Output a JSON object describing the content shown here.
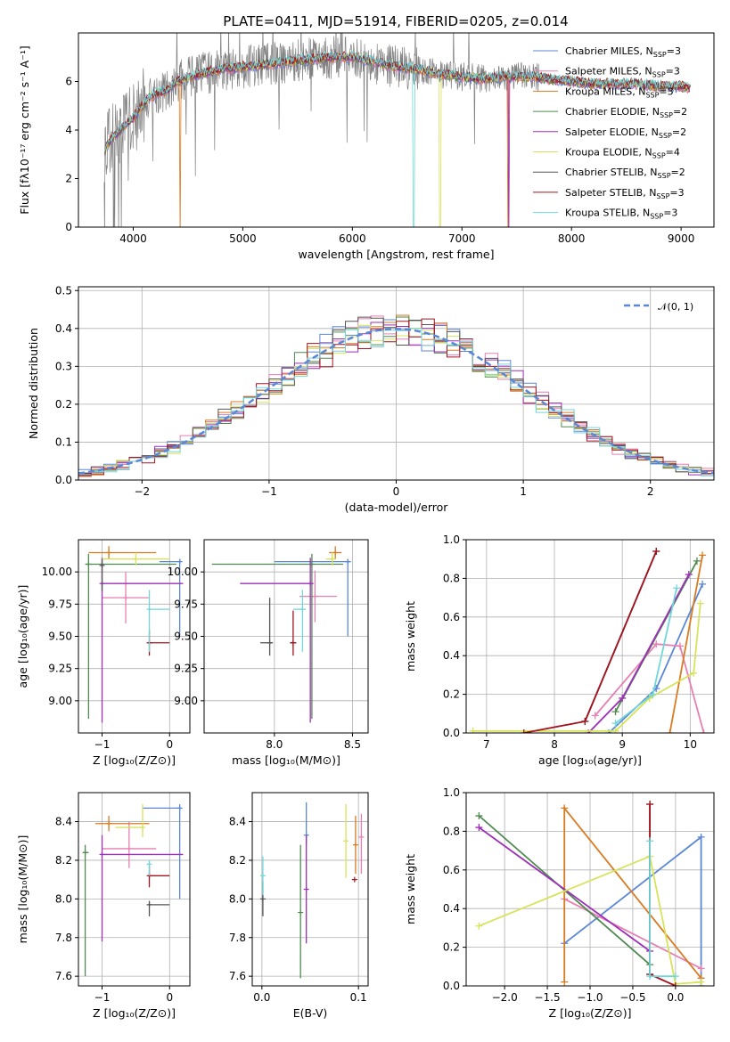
{
  "title": "PLATE=0411, MJD=51914, FIBERID=0205, z=0.014",
  "colors": {
    "Chabrier MILES": "#5b87d6",
    "Salpeter MILES": "#e87fb2",
    "Kroupa MILES": "#d97b21",
    "Chabrier ELODIE": "#4f8a4f",
    "Salpeter ELODIE": "#9d2fb8",
    "Kroupa ELODIE": "#d7e35a",
    "Chabrier STELIB": "#555555",
    "Salpeter STELIB": "#a5131f",
    "Kroupa STELIB": "#72d6d9",
    "data": "#808080",
    "normal": "#5b87d6"
  },
  "legend": [
    {
      "name": "Chabrier MILES",
      "label": "Chabrier MILES, N",
      "sub": "SSP",
      "n": "=3"
    },
    {
      "name": "Salpeter MILES",
      "label": "Salpeter MILES, N",
      "sub": "SSP",
      "n": "=3"
    },
    {
      "name": "Kroupa MILES",
      "label": "Kroupa MILES, N",
      "sub": "SSP",
      "n": "=3"
    },
    {
      "name": "Chabrier ELODIE",
      "label": "Chabrier ELODIE, N",
      "sub": "SSP",
      "n": "=2"
    },
    {
      "name": "Salpeter ELODIE",
      "label": "Salpeter ELODIE, N",
      "sub": "SSP",
      "n": "=2"
    },
    {
      "name": "Kroupa ELODIE",
      "label": "Kroupa ELODIE, N",
      "sub": "SSP",
      "n": "=4"
    },
    {
      "name": "Chabrier STELIB",
      "label": "Chabrier STELIB, N",
      "sub": "SSP",
      "n": "=2"
    },
    {
      "name": "Salpeter STELIB",
      "label": "Salpeter STELIB, N",
      "sub": "SSP",
      "n": "=3"
    },
    {
      "name": "Kroupa STELIB",
      "label": "Kroupa STELIB, N",
      "sub": "SSP",
      "n": "=3"
    }
  ],
  "chart_data": [
    {
      "id": "spectrum",
      "type": "line",
      "xlabel": "wavelength [Angstrom, rest frame]",
      "ylabel": "Flux [fλ10⁻¹⁷ erg cm⁻² s⁻¹ A⁻¹]",
      "xlim": [
        3500,
        9300
      ],
      "ylim": [
        0,
        8
      ],
      "xticks": [
        4000,
        5000,
        6000,
        7000,
        8000,
        9000
      ],
      "yticks": [
        0,
        2,
        4,
        6
      ],
      "continuum": {
        "x": [
          3700,
          3800,
          3900,
          4000,
          4100,
          4200,
          4300,
          4400,
          4600,
          4800,
          5000,
          5200,
          5400,
          5600,
          5800,
          6000,
          6200,
          6400,
          6600,
          6800,
          7000,
          7200,
          7400,
          7600,
          7800,
          8000,
          8200,
          8400,
          8600,
          8800,
          9000,
          9100
        ],
        "y": [
          2.9,
          3.6,
          4.1,
          4.5,
          5.1,
          5.5,
          5.6,
          6.0,
          6.3,
          6.5,
          6.6,
          6.7,
          6.8,
          6.9,
          7.0,
          7.0,
          6.8,
          6.6,
          6.5,
          6.3,
          6.2,
          6.1,
          6.2,
          6.2,
          6.1,
          6.0,
          5.9,
          5.9,
          5.9,
          5.8,
          5.8,
          5.7
        ]
      }
    },
    {
      "id": "residuals",
      "type": "histogram",
      "xlabel": "(data-model)/error",
      "ylabel": "Normed distribution",
      "xlim": [
        -2.5,
        2.5
      ],
      "ylim": [
        0,
        0.51
      ],
      "xticks": [
        -2,
        -1,
        0,
        1,
        2
      ],
      "yticks": [
        0.0,
        0.1,
        0.2,
        0.3,
        0.4,
        0.5
      ],
      "legend": "𝒩(0, 1)"
    },
    {
      "id": "age-vs-Z",
      "type": "errorbar",
      "xlabel": "Z [log₁₀(Z/Z⊙)]",
      "ylabel": "age  [log₁₀(age/yr)]",
      "xlim": [
        -1.35,
        0.3
      ],
      "ylim": [
        8.75,
        10.25
      ],
      "xticks": [
        -1,
        0
      ],
      "yticks": [
        9.0,
        9.25,
        9.5,
        9.75,
        10.0
      ],
      "points": [
        {
          "series": "Chabrier MILES",
          "x": 0.15,
          "xerr": [
            0.3,
            0.0
          ],
          "y": 10.08,
          "yerr": [
            0.58,
            0.02
          ]
        },
        {
          "series": "Salpeter MILES",
          "x": -0.65,
          "xerr": [
            0.35,
            0.35
          ],
          "y": 9.8,
          "yerr": [
            0.2,
            0.2
          ]
        },
        {
          "series": "Kroupa MILES",
          "x": -0.9,
          "xerr": [
            0.3,
            0.7
          ],
          "y": 10.15,
          "yerr": [
            0.05,
            0.05
          ]
        },
        {
          "series": "Chabrier ELODIE",
          "x": -1.2,
          "xerr": [
            0.05,
            1.3
          ],
          "y": 10.06,
          "yerr": [
            1.2,
            0.08
          ]
        },
        {
          "series": "Salpeter ELODIE",
          "x": -1.0,
          "xerr": [
            0.02,
            1.2
          ],
          "y": 9.91,
          "yerr": [
            1.08,
            0.2
          ]
        },
        {
          "series": "Kroupa ELODIE",
          "x": -0.5,
          "xerr": [
            0.5,
            0.5
          ],
          "y": 10.1,
          "yerr": [
            0.05,
            0.05
          ]
        },
        {
          "series": "Chabrier STELIB",
          "x": -1.0,
          "xerr": [
            0.02,
            0.02
          ],
          "y": 10.05,
          "yerr": [
            0.2,
            0.05
          ]
        },
        {
          "series": "Salpeter STELIB",
          "x": -0.3,
          "xerr": [
            0.02,
            0.3
          ],
          "y": 9.45,
          "yerr": [
            0.1,
            0.1
          ]
        },
        {
          "series": "Kroupa STELIB",
          "x": -0.3,
          "xerr": [
            0.02,
            0.3
          ],
          "y": 9.71,
          "yerr": [
            0.33,
            0.15
          ]
        }
      ]
    },
    {
      "id": "age-vs-mass",
      "type": "errorbar",
      "xlabel": "mass [log₁₀(M/M⊙)]",
      "ylabel": "",
      "xlim": [
        7.55,
        8.6
      ],
      "ylim": [
        8.75,
        10.25
      ],
      "xticks": [
        8.0,
        8.5
      ],
      "yticks": [
        9.0,
        9.25,
        9.5,
        9.75,
        10.0
      ],
      "points": [
        {
          "series": "Chabrier MILES",
          "x": 8.47,
          "xerr": [
            0.47,
            0.02
          ],
          "y": 10.08,
          "yerr": [
            0.58,
            0.02
          ]
        },
        {
          "series": "Salpeter MILES",
          "x": 8.26,
          "xerr": [
            0.1,
            0.14
          ],
          "y": 9.81,
          "yerr": [
            0.2,
            0.2
          ]
        },
        {
          "series": "Kroupa MILES",
          "x": 8.39,
          "xerr": [
            0.04,
            0.04
          ],
          "y": 10.15,
          "yerr": [
            0.05,
            0.05
          ]
        },
        {
          "series": "Chabrier ELODIE",
          "x": 8.24,
          "xerr": [
            0.64,
            0.2
          ],
          "y": 10.06,
          "yerr": [
            1.2,
            0.08
          ]
        },
        {
          "series": "Salpeter ELODIE",
          "x": 8.23,
          "xerr": [
            0.45,
            0.02
          ],
          "y": 9.91,
          "yerr": [
            1.08,
            0.2
          ]
        },
        {
          "series": "Kroupa ELODIE",
          "x": 8.37,
          "xerr": [
            0.04,
            0.02
          ],
          "y": 10.1,
          "yerr": [
            0.05,
            0.05
          ]
        },
        {
          "series": "Chabrier STELIB",
          "x": 7.97,
          "xerr": [
            0.06,
            0.02
          ],
          "y": 9.45,
          "yerr": [
            0.1,
            0.35
          ]
        },
        {
          "series": "Salpeter STELIB",
          "x": 8.12,
          "xerr": [
            0.02,
            0.02
          ],
          "y": 9.45,
          "yerr": [
            0.1,
            0.25
          ]
        },
        {
          "series": "Kroupa STELIB",
          "x": 8.18,
          "xerr": [
            0.06,
            0.02
          ],
          "y": 9.71,
          "yerr": [
            0.33,
            0.15
          ]
        }
      ]
    },
    {
      "id": "massweight-vs-age",
      "type": "line",
      "xlabel": "age  [log₁₀(age/yr)]",
      "ylabel": "mass weight",
      "xlim": [
        6.7,
        10.35
      ],
      "ylim": [
        0,
        1.0
      ],
      "xticks": [
        7,
        8,
        9,
        10
      ],
      "yticks": [
        0.0,
        0.2,
        0.4,
        0.6,
        0.8,
        1.0
      ],
      "series": [
        {
          "name": "Chabrier MILES",
          "x": [
            8.8,
            9.5,
            10.18
          ],
          "y": [
            0.0,
            0.23,
            0.77
          ]
        },
        {
          "name": "Salpeter MILES",
          "x": [
            8.6,
            9.5,
            9.85,
            10.2
          ],
          "y": [
            0.09,
            0.46,
            0.45,
            0.0
          ]
        },
        {
          "name": "Kroupa MILES",
          "x": [
            9.7,
            10.18
          ],
          "y": [
            0.0,
            0.92
          ]
        },
        {
          "name": "Chabrier ELODIE",
          "x": [
            8.9,
            10.1
          ],
          "y": [
            0.11,
            0.89
          ]
        },
        {
          "name": "Salpeter ELODIE",
          "x": [
            8.5,
            9.0,
            9.98
          ],
          "y": [
            0.0,
            0.18,
            0.82
          ]
        },
        {
          "name": "Kroupa ELODIE",
          "x": [
            6.8,
            8.9,
            9.4,
            10.05,
            10.15
          ],
          "y": [
            0.01,
            0.01,
            0.18,
            0.31,
            0.67
          ]
        },
        {
          "name": "Chabrier STELIB",
          "x": [
            8.45,
            9.5
          ],
          "y": [
            0.06,
            0.94
          ]
        },
        {
          "name": "Salpeter STELIB",
          "x": [
            7.55,
            8.45,
            9.5
          ],
          "y": [
            0.0,
            0.06,
            0.94
          ]
        },
        {
          "name": "Kroupa STELIB",
          "x": [
            8.9,
            9.45,
            9.8
          ],
          "y": [
            0.05,
            0.2,
            0.75
          ]
        }
      ]
    },
    {
      "id": "mass-vs-Z",
      "type": "errorbar",
      "xlabel": "Z [log₁₀(Z/Z⊙)]",
      "ylabel": "mass [log₁₀(M/M⊙)]",
      "xlim": [
        -1.35,
        0.3
      ],
      "ylim": [
        7.55,
        8.55
      ],
      "xticks": [
        -1,
        0
      ],
      "yticks": [
        7.6,
        7.8,
        8.0,
        8.2,
        8.4
      ],
      "points": [
        {
          "series": "Chabrier MILES",
          "x": 0.15,
          "xerr": [
            0.55,
            0.0
          ],
          "y": 8.47,
          "yerr": [
            0.47,
            0.02
          ]
        },
        {
          "series": "Salpeter MILES",
          "x": -0.6,
          "xerr": [
            0.4,
            0.4
          ],
          "y": 8.26,
          "yerr": [
            0.1,
            0.14
          ]
        },
        {
          "series": "Kroupa MILES",
          "x": -0.9,
          "xerr": [
            0.2,
            0.6
          ],
          "y": 8.39,
          "yerr": [
            0.04,
            0.04
          ]
        },
        {
          "series": "Chabrier ELODIE",
          "x": -1.25,
          "xerr": [
            0.02,
            0.05
          ],
          "y": 8.24,
          "yerr": [
            0.64,
            0.04
          ]
        },
        {
          "series": "Salpeter ELODIE",
          "x": -1.0,
          "xerr": [
            0.02,
            1.2
          ],
          "y": 8.23,
          "yerr": [
            0.45,
            0.1
          ]
        },
        {
          "series": "Kroupa ELODIE",
          "x": -0.4,
          "xerr": [
            0.4,
            0.02
          ],
          "y": 8.37,
          "yerr": [
            0.05,
            0.12
          ]
        },
        {
          "series": "Chabrier STELIB",
          "x": -0.3,
          "xerr": [
            0.02,
            0.3
          ],
          "y": 7.97,
          "yerr": [
            0.06,
            0.02
          ]
        },
        {
          "series": "Salpeter STELIB",
          "x": -0.3,
          "xerr": [
            0.02,
            0.3
          ],
          "y": 8.12,
          "yerr": [
            0.06,
            0.05
          ]
        },
        {
          "series": "Kroupa STELIB",
          "x": -0.3,
          "xerr": [
            0.02,
            0.02
          ],
          "y": 8.18,
          "yerr": [
            0.06,
            0.02
          ]
        }
      ]
    },
    {
      "id": "mass-vs-EBV",
      "type": "errorbar",
      "xlabel": "E(B-V)",
      "ylabel": "",
      "xlim": [
        -0.01,
        0.11
      ],
      "ylim": [
        7.55,
        8.55
      ],
      "xticks": [
        0.0,
        0.1
      ],
      "yticks": [
        7.6,
        7.8,
        8.0,
        8.2,
        8.4
      ],
      "points": [
        {
          "series": "Chabrier MILES",
          "x": 0.046,
          "y": 8.33,
          "yerr": [
            0.04,
            0.17
          ]
        },
        {
          "series": "Salpeter MILES",
          "x": 0.103,
          "y": 8.32,
          "yerr": [
            0.19,
            0.12
          ]
        },
        {
          "series": "Kroupa MILES",
          "x": 0.097,
          "y": 8.28,
          "yerr": [
            0.15,
            0.15
          ]
        },
        {
          "series": "Chabrier ELODIE",
          "x": 0.04,
          "y": 7.93,
          "yerr": [
            0.34,
            0.35
          ]
        },
        {
          "series": "Salpeter ELODIE",
          "x": 0.046,
          "y": 8.05,
          "yerr": [
            0.28,
            0.28
          ]
        },
        {
          "series": "Kroupa ELODIE",
          "x": 0.087,
          "y": 8.3,
          "yerr": [
            0.19,
            0.19
          ]
        },
        {
          "series": "Chabrier STELIB",
          "x": 0.001,
          "y": 8.0,
          "yerr": [
            0.09,
            0.09
          ]
        },
        {
          "series": "Salpeter STELIB",
          "x": 0.096,
          "y": 8.1,
          "yerr": [
            0.0,
            0.0
          ]
        },
        {
          "series": "Kroupa STELIB",
          "x": 0.001,
          "y": 8.12,
          "yerr": [
            0.1,
            0.1
          ]
        }
      ]
    },
    {
      "id": "massweight-vs-Z",
      "type": "line",
      "xlabel": "Z [log₁₀(Z/Z⊙)]",
      "ylabel": "mass weight",
      "xlim": [
        -2.45,
        0.45
      ],
      "ylim": [
        0,
        1.0
      ],
      "xticks": [
        -2.0,
        -1.5,
        -1.0,
        -0.5,
        0.0
      ],
      "yticks": [
        0.0,
        0.2,
        0.4,
        0.6,
        0.8,
        1.0
      ],
      "series": [
        {
          "name": "Chabrier MILES",
          "x": [
            -1.3,
            0.3,
            0.3
          ],
          "y": [
            0.22,
            0.77,
            0.0
          ]
        },
        {
          "name": "Salpeter MILES",
          "x": [
            -1.3,
            0.3
          ],
          "y": [
            0.45,
            0.09
          ]
        },
        {
          "name": "Kroupa MILES",
          "x": [
            -1.3,
            -1.3,
            0.3
          ],
          "y": [
            0.02,
            0.92,
            0.04
          ]
        },
        {
          "name": "Chabrier ELODIE",
          "x": [
            -2.3,
            -0.3
          ],
          "y": [
            0.88,
            0.11
          ]
        },
        {
          "name": "Salpeter ELODIE",
          "x": [
            -2.3,
            -0.3
          ],
          "y": [
            0.82,
            0.18
          ]
        },
        {
          "name": "Kroupa ELODIE",
          "x": [
            -2.3,
            -0.3,
            0.0,
            0.3
          ],
          "y": [
            0.31,
            0.67,
            0.01,
            0.02
          ]
        },
        {
          "name": "Chabrier STELIB",
          "x": [
            -0.3,
            -0.3
          ],
          "y": [
            0.06,
            0.94
          ]
        },
        {
          "name": "Salpeter STELIB",
          "x": [
            -0.3,
            -0.3,
            0.0
          ],
          "y": [
            0.94,
            0.06,
            0.0
          ]
        },
        {
          "name": "Kroupa STELIB",
          "x": [
            -0.3,
            -0.3,
            0.0
          ],
          "y": [
            0.75,
            0.05,
            0.05
          ]
        }
      ]
    }
  ]
}
